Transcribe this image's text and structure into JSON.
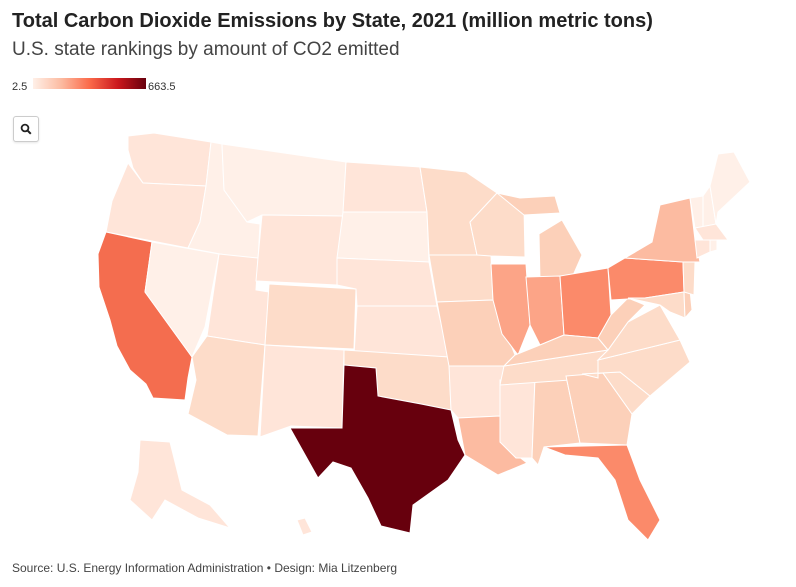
{
  "header": {
    "title": "Total Carbon Dioxide Emissions by State, 2021 (million metric tons)",
    "subtitle": "U.S. state rankings by amount of CO2 emitted"
  },
  "legend": {
    "min": "2.5",
    "max": "663.5"
  },
  "colors": {
    "c1": "#fff0e8",
    "c2": "#ffe5d9",
    "c3": "#fddcc9",
    "c4": "#fcd0b9",
    "c5": "#fcbba1",
    "c6": "#fca487",
    "c7": "#fb8a6a",
    "c8": "#fa7050",
    "c9": "#f46d4f",
    "texas": "#67000d",
    "stroke": "#ffffff"
  },
  "footer": {
    "source": "Source: U.S. Energy Information Administration • Design: Mia Litzenberg"
  }
}
